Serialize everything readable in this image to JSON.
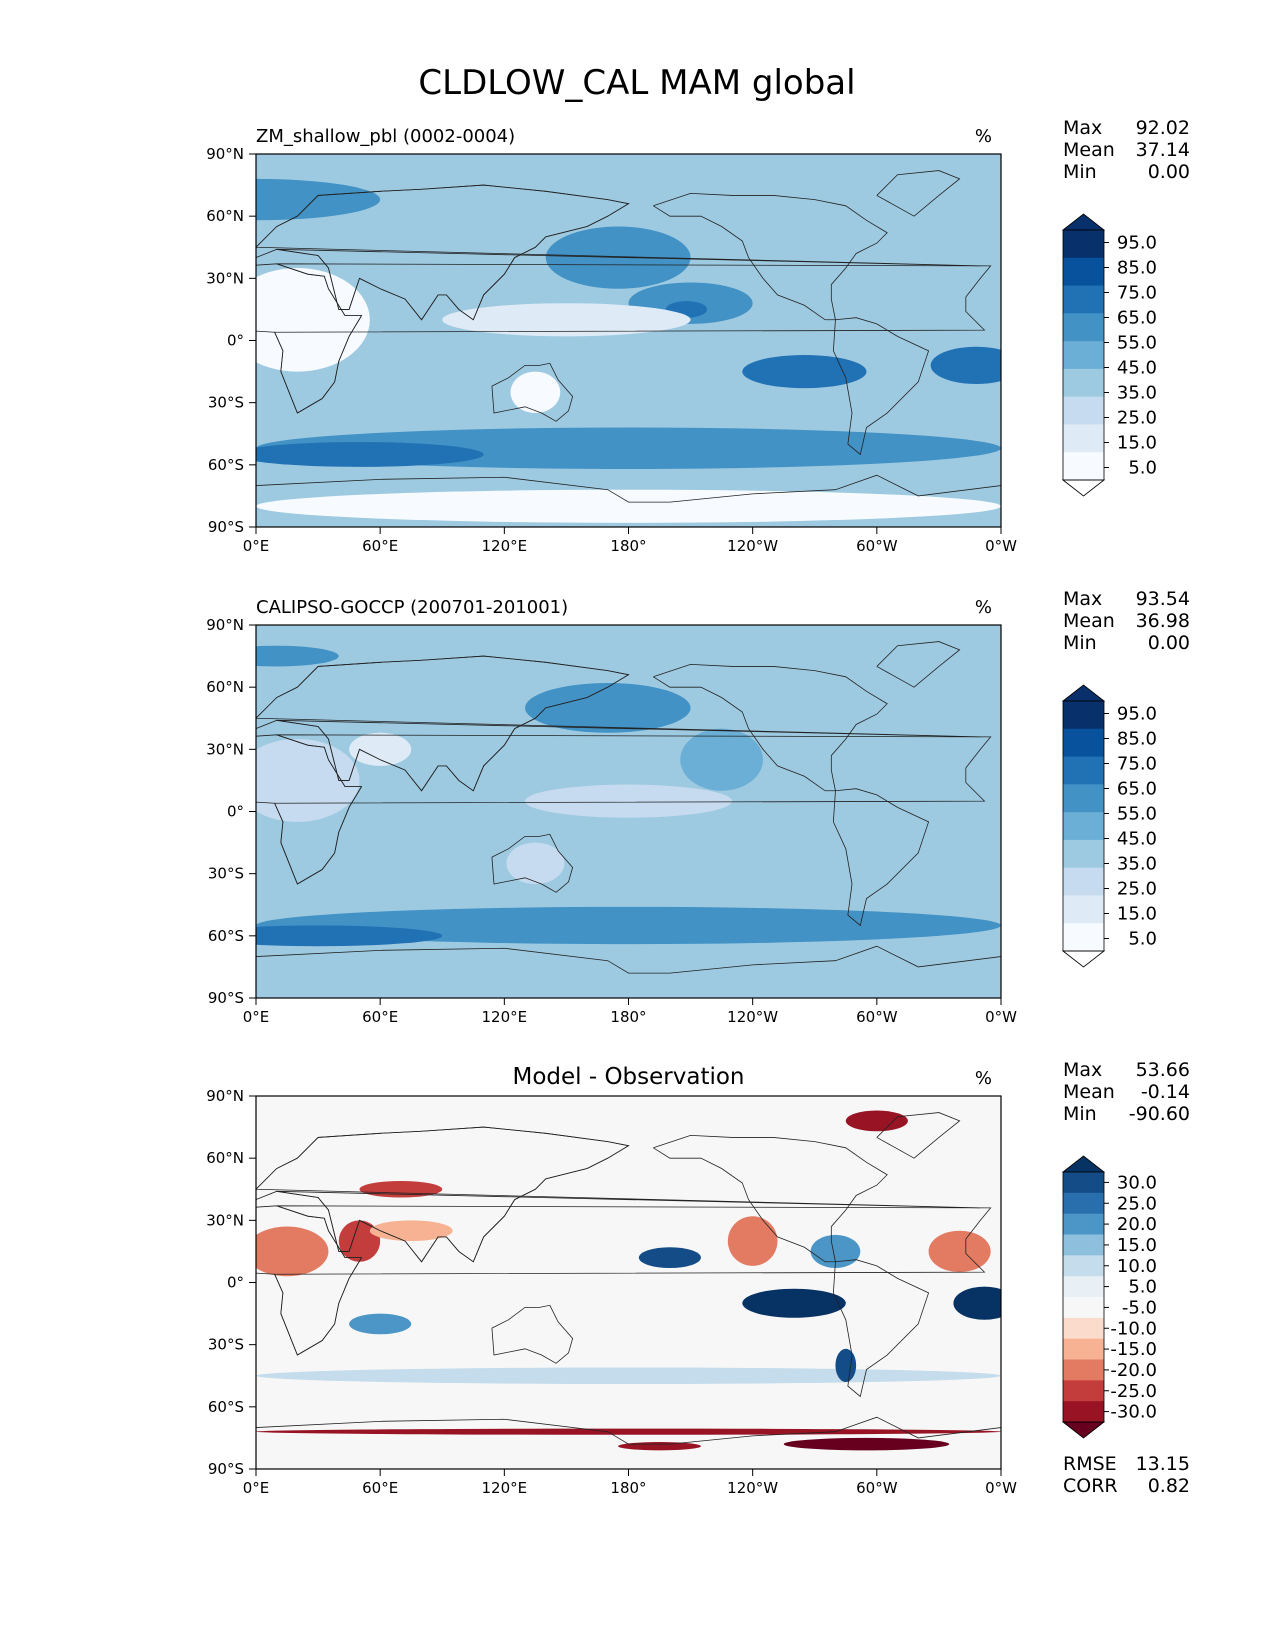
{
  "title": "CLDLOW_CAL MAM global",
  "panels": [
    {
      "id": "model",
      "title_left": "ZM_shallow_pbl (0002-0004)",
      "title_center": "",
      "units": "%",
      "stats": [
        {
          "label": "Max",
          "value": "92.02"
        },
        {
          "label": "Mean",
          "value": "37.14"
        },
        {
          "label": "Min",
          "value": "0.00"
        }
      ],
      "colorbar": {
        "ticks": [
          "95.0",
          "85.0",
          "75.0",
          "65.0",
          "55.0",
          "45.0",
          "35.0",
          "25.0",
          "15.0",
          "5.0"
        ],
        "colors": [
          "#08306b",
          "#08519c",
          "#2171b5",
          "#4292c6",
          "#6baed6",
          "#9ecae1",
          "#c6dbef",
          "#deebf7",
          "#f7fbff"
        ],
        "extend_top": "#08306b",
        "extend_bottom": "#ffffff"
      },
      "extra_stats": [],
      "field_background": "#9ecae1",
      "blobs": [
        {
          "lon": 0,
          "lat": 68,
          "rx": 60,
          "ry": 10,
          "color": "#4292c6"
        },
        {
          "lon": 175,
          "lat": 40,
          "rx": 35,
          "ry": 15,
          "color": "#4292c6"
        },
        {
          "lon": 210,
          "lat": 18,
          "rx": 30,
          "ry": 10,
          "color": "#4292c6"
        },
        {
          "lon": 208,
          "lat": 15,
          "rx": 10,
          "ry": 4,
          "color": "#2171b5"
        },
        {
          "lon": 265,
          "lat": -15,
          "rx": 30,
          "ry": 8,
          "color": "#2171b5"
        },
        {
          "lon": 348,
          "lat": -12,
          "rx": 22,
          "ry": 9,
          "color": "#2171b5"
        },
        {
          "lon": 180,
          "lat": -52,
          "rx": 180,
          "ry": 10,
          "color": "#4292c6"
        },
        {
          "lon": 50,
          "lat": -55,
          "rx": 60,
          "ry": 6,
          "color": "#2171b5"
        },
        {
          "lon": 150,
          "lat": 10,
          "rx": 60,
          "ry": 8,
          "color": "#deebf7"
        },
        {
          "lon": 20,
          "lat": 10,
          "rx": 35,
          "ry": 25,
          "color": "#f7fbff"
        },
        {
          "lon": 135,
          "lat": -25,
          "rx": 12,
          "ry": 10,
          "color": "#f7fbff"
        },
        {
          "lon": 180,
          "lat": -80,
          "rx": 180,
          "ry": 8,
          "color": "#f7fbff"
        }
      ]
    },
    {
      "id": "obs",
      "title_left": "CALIPSO-GOCCP (200701-201001)",
      "title_center": "",
      "units": "%",
      "stats": [
        {
          "label": "Max",
          "value": "93.54"
        },
        {
          "label": "Mean",
          "value": "36.98"
        },
        {
          "label": "Min",
          "value": "0.00"
        }
      ],
      "colorbar": {
        "ticks": [
          "95.0",
          "85.0",
          "75.0",
          "65.0",
          "55.0",
          "45.0",
          "35.0",
          "25.0",
          "15.0",
          "5.0"
        ],
        "colors": [
          "#08306b",
          "#08519c",
          "#2171b5",
          "#4292c6",
          "#6baed6",
          "#9ecae1",
          "#c6dbef",
          "#deebf7",
          "#f7fbff"
        ],
        "extend_top": "#08306b",
        "extend_bottom": "#ffffff"
      },
      "extra_stats": [],
      "field_background": "#9ecae1",
      "blobs": [
        {
          "lon": 170,
          "lat": 50,
          "rx": 40,
          "ry": 12,
          "color": "#4292c6"
        },
        {
          "lon": 225,
          "lat": 25,
          "rx": 20,
          "ry": 15,
          "color": "#6baed6"
        },
        {
          "lon": 180,
          "lat": -55,
          "rx": 180,
          "ry": 9,
          "color": "#4292c6"
        },
        {
          "lon": 30,
          "lat": -60,
          "rx": 60,
          "ry": 5,
          "color": "#2171b5"
        },
        {
          "lon": 10,
          "lat": 75,
          "rx": 30,
          "ry": 5,
          "color": "#4292c6"
        },
        {
          "lon": 20,
          "lat": 15,
          "rx": 30,
          "ry": 20,
          "color": "#c6dbef"
        },
        {
          "lon": 60,
          "lat": 30,
          "rx": 15,
          "ry": 8,
          "color": "#deebf7"
        },
        {
          "lon": 135,
          "lat": -25,
          "rx": 14,
          "ry": 10,
          "color": "#c6dbef"
        },
        {
          "lon": 180,
          "lat": 5,
          "rx": 50,
          "ry": 8,
          "color": "#c6dbef"
        }
      ]
    },
    {
      "id": "diff",
      "title_left": "",
      "title_center": "Model - Observation",
      "units": "%",
      "stats": [
        {
          "label": "Max",
          "value": "53.66"
        },
        {
          "label": "Mean",
          "value": "-0.14"
        },
        {
          "label": "Min",
          "value": "-90.60"
        }
      ],
      "colorbar": {
        "ticks": [
          "30.0",
          "25.0",
          "20.0",
          "15.0",
          "10.0",
          "5.0",
          "-5.0",
          "-10.0",
          "-15.0",
          "-20.0",
          "-25.0",
          "-30.0"
        ],
        "colors": [
          "#134c87",
          "#2a6fad",
          "#4b96c6",
          "#8ec0dd",
          "#c4dcec",
          "#e8eff5",
          "#f7f7f7",
          "#fbdccc",
          "#f6b293",
          "#e37b63",
          "#c33d3d",
          "#981425"
        ],
        "extend_top": "#073264",
        "extend_bottom": "#67001f"
      },
      "extra_stats": [
        {
          "label": "RMSE",
          "value": "13.15"
        },
        {
          "label": "CORR",
          "value": "0.82"
        }
      ],
      "field_background": "#f7f7f7",
      "blobs": [
        {
          "lon": 15,
          "lat": 15,
          "rx": 20,
          "ry": 12,
          "color": "#e37b63"
        },
        {
          "lon": 50,
          "lat": 20,
          "rx": 10,
          "ry": 10,
          "color": "#c33d3d"
        },
        {
          "lon": 75,
          "lat": 25,
          "rx": 20,
          "ry": 5,
          "color": "#f6b293"
        },
        {
          "lon": 240,
          "lat": 20,
          "rx": 12,
          "ry": 12,
          "color": "#e37b63"
        },
        {
          "lon": 340,
          "lat": 15,
          "rx": 15,
          "ry": 10,
          "color": "#e37b63"
        },
        {
          "lon": 200,
          "lat": 12,
          "rx": 15,
          "ry": 5,
          "color": "#134c87"
        },
        {
          "lon": 260,
          "lat": -10,
          "rx": 25,
          "ry": 7,
          "color": "#073264"
        },
        {
          "lon": 352,
          "lat": -10,
          "rx": 15,
          "ry": 8,
          "color": "#073264"
        },
        {
          "lon": 280,
          "lat": 15,
          "rx": 12,
          "ry": 8,
          "color": "#4b96c6"
        },
        {
          "lon": 60,
          "lat": -20,
          "rx": 15,
          "ry": 5,
          "color": "#4b96c6"
        },
        {
          "lon": 180,
          "lat": -45,
          "rx": 180,
          "ry": 4,
          "color": "#c4dcec"
        },
        {
          "lon": 180,
          "lat": -72,
          "rx": 180,
          "ry": 1.5,
          "color": "#981425"
        },
        {
          "lon": 295,
          "lat": -78,
          "rx": 40,
          "ry": 3,
          "color": "#67001f"
        },
        {
          "lon": 195,
          "lat": -79,
          "rx": 20,
          "ry": 2,
          "color": "#981425"
        },
        {
          "lon": 300,
          "lat": 78,
          "rx": 15,
          "ry": 5,
          "color": "#981425"
        },
        {
          "lon": 70,
          "lat": 45,
          "rx": 20,
          "ry": 4,
          "color": "#c33d3d"
        },
        {
          "lon": 285,
          "lat": -40,
          "rx": 5,
          "ry": 8,
          "color": "#134c87"
        }
      ]
    }
  ],
  "axes": {
    "x_ticks": [
      "0°E",
      "60°E",
      "120°E",
      "180°",
      "120°W",
      "60°W",
      "0°W"
    ],
    "x_tick_lons": [
      0,
      60,
      120,
      180,
      240,
      300,
      360
    ],
    "y_ticks": [
      "90°N",
      "60°N",
      "30°N",
      "0°",
      "30°S",
      "60°S",
      "90°S"
    ],
    "y_tick_lats": [
      90,
      60,
      30,
      0,
      -30,
      -60,
      -90
    ]
  },
  "chart_data": [
    {
      "type": "heatmap",
      "title": "ZM_shallow_pbl (0002-0004)",
      "units": "%",
      "xlim": [
        0,
        360
      ],
      "ylim": [
        -90,
        90
      ],
      "levels": [
        5,
        15,
        25,
        35,
        45,
        55,
        65,
        75,
        85,
        95
      ],
      "stats": {
        "max": 92.02,
        "mean": 37.14,
        "min": 0.0
      }
    },
    {
      "type": "heatmap",
      "title": "CALIPSO-GOCCP (200701-201001)",
      "units": "%",
      "xlim": [
        0,
        360
      ],
      "ylim": [
        -90,
        90
      ],
      "levels": [
        5,
        15,
        25,
        35,
        45,
        55,
        65,
        75,
        85,
        95
      ],
      "stats": {
        "max": 93.54,
        "mean": 36.98,
        "min": 0.0
      }
    },
    {
      "type": "heatmap",
      "title": "Model - Observation",
      "units": "%",
      "xlim": [
        0,
        360
      ],
      "ylim": [
        -90,
        90
      ],
      "levels": [
        -30,
        -25,
        -20,
        -15,
        -10,
        -5,
        5,
        10,
        15,
        20,
        25,
        30
      ],
      "stats": {
        "max": 53.66,
        "mean": -0.14,
        "min": -90.6,
        "rmse": 13.15,
        "corr": 0.82
      }
    }
  ]
}
